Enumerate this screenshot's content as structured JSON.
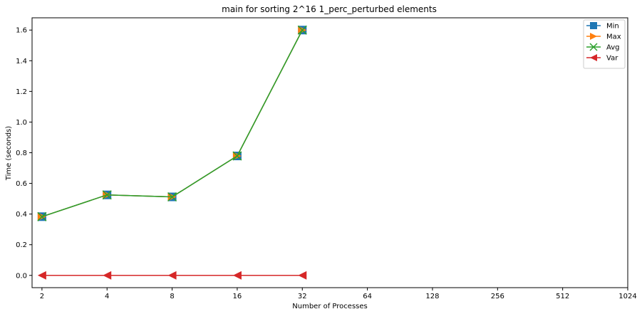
{
  "chart_data": {
    "type": "line",
    "title": "main for sorting 2^16 1_perc_perturbed elements",
    "xlabel": "Number of Processes",
    "ylabel": "Time (seconds)",
    "x_scale": "log2",
    "x_ticks": [
      "2",
      "4",
      "8",
      "16",
      "32",
      "64",
      "128",
      "256",
      "512",
      "1024"
    ],
    "x_tick_values": [
      2,
      4,
      8,
      16,
      32,
      64,
      128,
      256,
      512,
      1024
    ],
    "xlim": [
      1.8,
      1024
    ],
    "ylim": [
      -0.08,
      1.68
    ],
    "y_ticks": [
      "0.0",
      "0.2",
      "0.4",
      "0.6",
      "0.8",
      "1.0",
      "1.2",
      "1.4",
      "1.6"
    ],
    "y_tick_values": [
      0.0,
      0.2,
      0.4,
      0.6,
      0.8,
      1.0,
      1.2,
      1.4,
      1.6
    ],
    "grid": false,
    "legend_position": "top-right",
    "x": [
      2,
      4,
      8,
      16,
      32
    ],
    "series": [
      {
        "name": "Min",
        "marker": "square",
        "color": "#1f77b4",
        "values": [
          0.383,
          0.525,
          0.512,
          0.779,
          1.6
        ]
      },
      {
        "name": "Max",
        "marker": "triangle-right",
        "color": "#ff7f0e",
        "values": [
          0.383,
          0.525,
          0.512,
          0.779,
          1.6
        ]
      },
      {
        "name": "Avg",
        "marker": "x",
        "color": "#2ca02c",
        "values": [
          0.383,
          0.525,
          0.512,
          0.779,
          1.6
        ]
      },
      {
        "name": "Var",
        "marker": "triangle-left",
        "color": "#d62728",
        "values": [
          0.0,
          0.0,
          0.0,
          0.0,
          0.0
        ]
      }
    ]
  }
}
